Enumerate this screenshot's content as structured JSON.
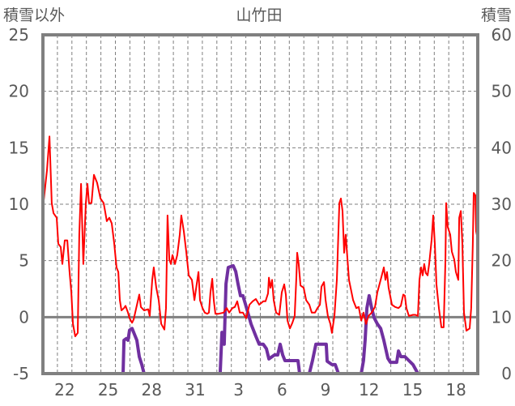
{
  "chart_data": {
    "type": "line",
    "title": "山竹田",
    "ylabel_left": "積雪以外",
    "ylabel_right": "積雪",
    "ylim_left": [
      -5,
      25
    ],
    "ylim_right": [
      0,
      60
    ],
    "yticks_left": [
      "-5",
      "0",
      "5",
      "10",
      "15",
      "20",
      "25"
    ],
    "yticks_right": [
      "0",
      "10",
      "20",
      "30",
      "40",
      "50",
      "60"
    ],
    "xlim_days": [
      0,
      30
    ],
    "xticks": [
      {
        "day": 1,
        "label": "22"
      },
      {
        "day": 4,
        "label": "25"
      },
      {
        "day": 7,
        "label": "28"
      },
      {
        "day": 10,
        "label": "31"
      },
      {
        "day": 13,
        "label": "3"
      },
      {
        "day": 16,
        "label": "6"
      },
      {
        "day": 19,
        "label": "9"
      },
      {
        "day": 22,
        "label": "12"
      },
      {
        "day": 25,
        "label": "15"
      },
      {
        "day": 28,
        "label": "18"
      }
    ],
    "grid": true,
    "series": [
      {
        "name": "積雪以外",
        "axis": "left",
        "color": "#ff0000",
        "points": [
          [
            0.06,
            10.4
          ],
          [
            0.28,
            13.0
          ],
          [
            0.45,
            16.0
          ],
          [
            0.61,
            10.1
          ],
          [
            0.73,
            9.2
          ],
          [
            0.95,
            8.8
          ],
          [
            1.06,
            6.5
          ],
          [
            1.23,
            6.2
          ],
          [
            1.34,
            4.7
          ],
          [
            1.51,
            6.8
          ],
          [
            1.68,
            6.8
          ],
          [
            1.84,
            4.0
          ],
          [
            1.96,
            2.2
          ],
          [
            2.07,
            -0.6
          ],
          [
            2.23,
            -1.7
          ],
          [
            2.4,
            -1.4
          ],
          [
            2.51,
            7.3
          ],
          [
            2.63,
            11.8
          ],
          [
            2.79,
            4.7
          ],
          [
            2.96,
            10.1
          ],
          [
            3.07,
            11.8
          ],
          [
            3.18,
            10.1
          ],
          [
            3.35,
            10.1
          ],
          [
            3.52,
            12.6
          ],
          [
            3.74,
            11.9
          ],
          [
            3.97,
            10.5
          ],
          [
            4.19,
            10.1
          ],
          [
            4.3,
            9.3
          ],
          [
            4.41,
            8.5
          ],
          [
            4.58,
            8.8
          ],
          [
            4.75,
            8.3
          ],
          [
            4.92,
            6.5
          ],
          [
            5.08,
            4.4
          ],
          [
            5.2,
            4.0
          ],
          [
            5.31,
            1.5
          ],
          [
            5.42,
            0.6
          ],
          [
            5.59,
            0.8
          ],
          [
            5.7,
            1.0
          ],
          [
            5.87,
            0.4
          ],
          [
            5.98,
            -0.1
          ],
          [
            6.15,
            -0.5
          ],
          [
            6.26,
            -0.2
          ],
          [
            6.42,
            0.7
          ],
          [
            6.65,
            2.0
          ],
          [
            6.76,
            0.9
          ],
          [
            6.98,
            0.6
          ],
          [
            7.26,
            0.7
          ],
          [
            7.37,
            0.1
          ],
          [
            7.54,
            3.3
          ],
          [
            7.65,
            4.4
          ],
          [
            7.82,
            2.6
          ],
          [
            7.99,
            1.5
          ],
          [
            8.16,
            -0.6
          ],
          [
            8.38,
            -1.1
          ],
          [
            8.49,
            0.8
          ],
          [
            8.6,
            9.0
          ],
          [
            8.72,
            5.1
          ],
          [
            8.83,
            4.7
          ],
          [
            8.94,
            5.5
          ],
          [
            9.11,
            4.7
          ],
          [
            9.27,
            5.5
          ],
          [
            9.44,
            7.3
          ],
          [
            9.55,
            9.0
          ],
          [
            9.72,
            7.6
          ],
          [
            9.89,
            5.8
          ],
          [
            10.06,
            3.7
          ],
          [
            10.28,
            3.3
          ],
          [
            10.45,
            1.5
          ],
          [
            10.61,
            2.9
          ],
          [
            10.73,
            4.0
          ],
          [
            10.84,
            1.5
          ],
          [
            11.01,
            0.8
          ],
          [
            11.17,
            0.4
          ],
          [
            11.34,
            0.3
          ],
          [
            11.45,
            0.4
          ],
          [
            11.56,
            2.2
          ],
          [
            11.68,
            3.4
          ],
          [
            11.79,
            1.5
          ],
          [
            11.9,
            0.3
          ],
          [
            12.12,
            0.3
          ],
          [
            12.46,
            0.4
          ],
          [
            12.68,
            0.8
          ],
          [
            12.85,
            0.4
          ],
          [
            13.07,
            0.8
          ],
          [
            13.24,
            0.9
          ],
          [
            13.41,
            1.4
          ],
          [
            13.58,
            0.4
          ],
          [
            13.8,
            0.4
          ],
          [
            14.02,
            -0.1
          ],
          [
            14.25,
            1.1
          ],
          [
            14.47,
            1.4
          ],
          [
            14.69,
            1.6
          ],
          [
            14.92,
            1.1
          ],
          [
            15.2,
            1.4
          ],
          [
            15.36,
            1.4
          ],
          [
            15.53,
            2.1
          ],
          [
            15.59,
            3.5
          ],
          [
            15.7,
            2.6
          ],
          [
            15.81,
            3.3
          ],
          [
            15.92,
            1.5
          ],
          [
            16.09,
            0.4
          ],
          [
            16.31,
            0.2
          ],
          [
            16.48,
            2.2
          ],
          [
            16.65,
            2.9
          ],
          [
            16.76,
            2.0
          ],
          [
            16.87,
            -0.3
          ],
          [
            17.04,
            -1.0
          ],
          [
            17.21,
            -0.5
          ],
          [
            17.37,
            0.1
          ],
          [
            17.49,
            3.7
          ],
          [
            17.54,
            5.7
          ],
          [
            17.65,
            4.7
          ],
          [
            17.77,
            2.8
          ],
          [
            17.99,
            2.6
          ],
          [
            18.16,
            1.5
          ],
          [
            18.38,
            1.1
          ],
          [
            18.55,
            0.4
          ],
          [
            18.77,
            0.4
          ],
          [
            18.94,
            0.8
          ],
          [
            19.11,
            1.1
          ],
          [
            19.22,
            2.7
          ],
          [
            19.39,
            3.1
          ],
          [
            19.5,
            1.5
          ],
          [
            19.66,
            0.1
          ],
          [
            19.83,
            -0.6
          ],
          [
            19.94,
            -1.4
          ],
          [
            20.11,
            0.1
          ],
          [
            20.28,
            3.3
          ],
          [
            20.45,
            10.1
          ],
          [
            20.56,
            10.5
          ],
          [
            20.67,
            9.4
          ],
          [
            20.78,
            5.7
          ],
          [
            20.89,
            7.3
          ],
          [
            21.12,
            3.3
          ],
          [
            21.4,
            1.5
          ],
          [
            21.62,
            0.8
          ],
          [
            21.79,
            0.9
          ],
          [
            21.96,
            -0.3
          ],
          [
            22.12,
            0.4
          ],
          [
            22.29,
            -0.6
          ],
          [
            22.46,
            0.1
          ],
          [
            22.68,
            0.4
          ],
          [
            22.91,
            0.9
          ],
          [
            23.07,
            2.2
          ],
          [
            23.3,
            3.3
          ],
          [
            23.52,
            4.4
          ],
          [
            23.63,
            3.3
          ],
          [
            23.74,
            4.0
          ],
          [
            23.85,
            2.6
          ],
          [
            24.08,
            1.1
          ],
          [
            24.3,
            0.9
          ],
          [
            24.53,
            0.8
          ],
          [
            24.69,
            1.0
          ],
          [
            24.86,
            2.0
          ],
          [
            24.97,
            1.9
          ],
          [
            25.08,
            0.8
          ],
          [
            25.25,
            0.1
          ],
          [
            25.53,
            0.2
          ],
          [
            25.7,
            0.2
          ],
          [
            25.87,
            0.1
          ],
          [
            25.98,
            3.3
          ],
          [
            26.09,
            4.4
          ],
          [
            26.2,
            3.7
          ],
          [
            26.31,
            4.7
          ],
          [
            26.42,
            3.9
          ],
          [
            26.54,
            3.7
          ],
          [
            26.65,
            4.7
          ],
          [
            26.82,
            6.9
          ],
          [
            26.93,
            9.0
          ],
          [
            27.04,
            6.5
          ],
          [
            27.15,
            2.9
          ],
          [
            27.32,
            0.8
          ],
          [
            27.49,
            -0.9
          ],
          [
            27.65,
            -0.9
          ],
          [
            27.77,
            5.1
          ],
          [
            27.82,
            10.1
          ],
          [
            27.93,
            8.0
          ],
          [
            28.1,
            7.3
          ],
          [
            28.21,
            5.8
          ],
          [
            28.38,
            5.1
          ],
          [
            28.49,
            4.0
          ],
          [
            28.66,
            3.3
          ],
          [
            28.72,
            8.8
          ],
          [
            28.83,
            9.4
          ],
          [
            28.94,
            6.5
          ],
          [
            29.05,
            0.4
          ],
          [
            29.22,
            -1.2
          ],
          [
            29.44,
            -1.0
          ],
          [
            29.55,
            0.8
          ],
          [
            29.66,
            6.5
          ],
          [
            29.72,
            11.0
          ],
          [
            29.83,
            10.8
          ],
          [
            29.89,
            7.6
          ],
          [
            30.0,
            6.9
          ]
        ]
      },
      {
        "name": "積雪",
        "axis": "right",
        "color": "#7030a0",
        "points": [
          [
            0,
            0
          ],
          [
            5.53,
            0
          ],
          [
            5.59,
            5.9
          ],
          [
            5.75,
            6.2
          ],
          [
            5.87,
            5.9
          ],
          [
            5.98,
            7.7
          ],
          [
            6.15,
            8.0
          ],
          [
            6.31,
            7.0
          ],
          [
            6.48,
            5.9
          ],
          [
            6.65,
            3.0
          ],
          [
            6.82,
            1.6
          ],
          [
            6.98,
            0
          ],
          [
            12.23,
            0
          ],
          [
            12.35,
            7.3
          ],
          [
            12.51,
            5.2
          ],
          [
            12.63,
            15.9
          ],
          [
            12.79,
            18.8
          ],
          [
            13.13,
            19.1
          ],
          [
            13.3,
            18.1
          ],
          [
            13.46,
            15.9
          ],
          [
            13.63,
            13.8
          ],
          [
            13.8,
            13.8
          ],
          [
            13.97,
            12.3
          ],
          [
            14.13,
            10.9
          ],
          [
            14.36,
            8.8
          ],
          [
            14.69,
            6.6
          ],
          [
            14.92,
            5.2
          ],
          [
            15.2,
            5.2
          ],
          [
            15.42,
            4.4
          ],
          [
            15.59,
            2.6
          ],
          [
            15.98,
            3.3
          ],
          [
            16.2,
            3.3
          ],
          [
            16.37,
            5.2
          ],
          [
            16.54,
            3.3
          ],
          [
            16.7,
            2.3
          ],
          [
            17.6,
            2.3
          ],
          [
            17.71,
            0
          ],
          [
            18.38,
            0
          ],
          [
            18.6,
            2.3
          ],
          [
            18.83,
            5.2
          ],
          [
            19.55,
            5.2
          ],
          [
            19.61,
            2.2
          ],
          [
            19.94,
            1.6
          ],
          [
            20.17,
            1.6
          ],
          [
            20.39,
            0
          ],
          [
            21.96,
            0
          ],
          [
            22.12,
            2.3
          ],
          [
            22.23,
            5.9
          ],
          [
            22.35,
            11.6
          ],
          [
            22.51,
            13.8
          ],
          [
            22.68,
            11.6
          ],
          [
            22.85,
            9.9
          ],
          [
            23.07,
            8.8
          ],
          [
            23.3,
            8.0
          ],
          [
            23.52,
            5.9
          ],
          [
            23.8,
            2.7
          ],
          [
            23.97,
            2.0
          ],
          [
            24.41,
            2.0
          ],
          [
            24.53,
            4.0
          ],
          [
            24.69,
            3.0
          ],
          [
            24.97,
            3.0
          ],
          [
            25.25,
            2.3
          ],
          [
            25.53,
            1.6
          ],
          [
            25.87,
            0
          ],
          [
            30,
            0
          ]
        ]
      }
    ]
  }
}
